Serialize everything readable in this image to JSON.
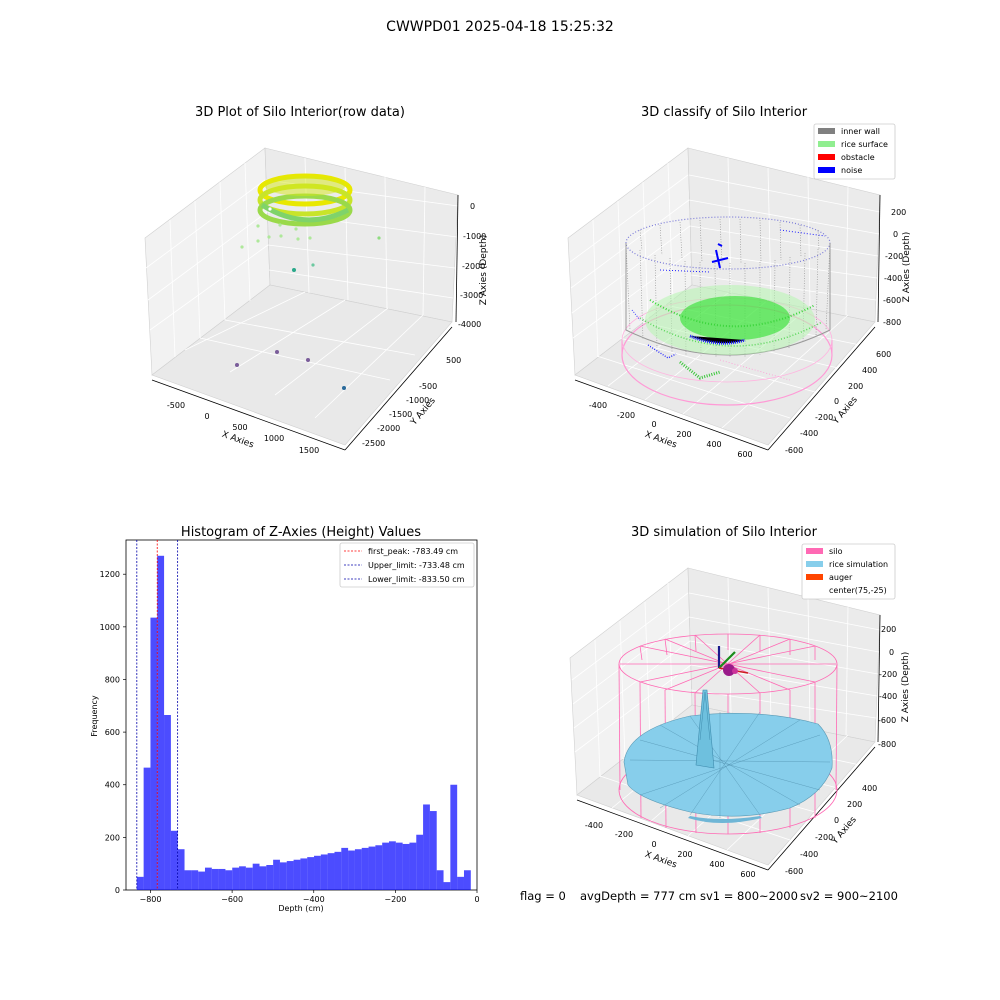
{
  "suptitle": "CWWPD01 2025-04-18 15:25:32",
  "panels": {
    "raw": {
      "title": "3D Plot of Silo Interior(row data)",
      "xlabel": "X Axies",
      "ylabel": "Y Axies",
      "zlabel": "Z Axies (Depth)",
      "xticks": [
        "-500",
        "0",
        "500",
        "1000",
        "1500"
      ],
      "yticks": [
        "500",
        "-500",
        "-1000",
        "-1500",
        "-2000",
        "-2500"
      ],
      "zticks": [
        "0",
        "-1000",
        "-2000",
        "-3000",
        "-4000"
      ]
    },
    "classify": {
      "title": "3D classify of Silo Interior",
      "xlabel": "X Axies",
      "ylabel": "Y Axies",
      "zlabel": "Z Axies (Depth)",
      "xticks": [
        "-400",
        "-200",
        "0",
        "200",
        "400",
        "600"
      ],
      "yticks": [
        "600",
        "400",
        "200",
        "0",
        "-200",
        "-400",
        "-600"
      ],
      "zticks": [
        "200",
        "0",
        "-200",
        "-400",
        "-600",
        "-800"
      ],
      "legend": [
        {
          "label": "inner wall",
          "color": "#808080"
        },
        {
          "label": "rice surface",
          "color": "#90ee90"
        },
        {
          "label": "obstacle",
          "color": "#ff0000"
        },
        {
          "label": "noise",
          "color": "#0000ff"
        }
      ]
    },
    "simulation": {
      "title": "3D simulation of Silo Interior",
      "xlabel": "X Axies",
      "ylabel": "Y Axies",
      "zlabel": "Z Axies (Depth)",
      "xticks": [
        "-400",
        "-200",
        "0",
        "200",
        "400",
        "600"
      ],
      "yticks": [
        "400",
        "200",
        "0",
        "-200",
        "-400",
        "-600"
      ],
      "zticks": [
        "200",
        "0",
        "-200",
        "-400",
        "-600",
        "-800"
      ],
      "legend": [
        {
          "label": "silo",
          "color": "#ff69b4"
        },
        {
          "label": "rice simulation",
          "color": "#87ceeb"
        },
        {
          "label": "auger",
          "color": "#ff4500"
        },
        {
          "label": "center(75,-25)",
          "color": "#ffffff"
        }
      ]
    }
  },
  "chart_data": {
    "type": "bar",
    "title": "Histogram of Z-Axies (Height) Values",
    "xlabel": "Depth (cm)",
    "ylabel": "Frequency",
    "xlim": [
      -860,
      0
    ],
    "ylim": [
      0,
      1330
    ],
    "xticks": [
      -800,
      -600,
      -400,
      -200,
      0
    ],
    "yticks": [
      0,
      200,
      400,
      600,
      800,
      1000,
      1200
    ],
    "bar_color": "#0000ff",
    "bin_width": 16.7,
    "bin_start": -833.5,
    "values": [
      50,
      465,
      1035,
      1270,
      665,
      225,
      155,
      75,
      75,
      70,
      85,
      80,
      80,
      75,
      85,
      90,
      85,
      100,
      90,
      95,
      115,
      105,
      110,
      115,
      120,
      125,
      130,
      135,
      140,
      145,
      160,
      150,
      155,
      160,
      165,
      170,
      180,
      185,
      180,
      175,
      180,
      210,
      325,
      300,
      75,
      30,
      400,
      50,
      75
    ],
    "vlines": [
      {
        "label": "first_peak: -783.49 cm",
        "x": -783.49,
        "color": "#ff0000"
      },
      {
        "label": "Upper_limit: -733.48 cm",
        "x": -733.48,
        "color": "#0000aa"
      },
      {
        "label": "Lower_limit: -833.50 cm",
        "x": -833.5,
        "color": "#0000aa"
      }
    ],
    "legend_position": "top-right"
  },
  "status": {
    "flag": "flag = 0",
    "avg_depth": "avgDepth = 777 cm",
    "sv1": "sv1 = 800~2000",
    "sv2": "sv2 = 900~2100"
  }
}
